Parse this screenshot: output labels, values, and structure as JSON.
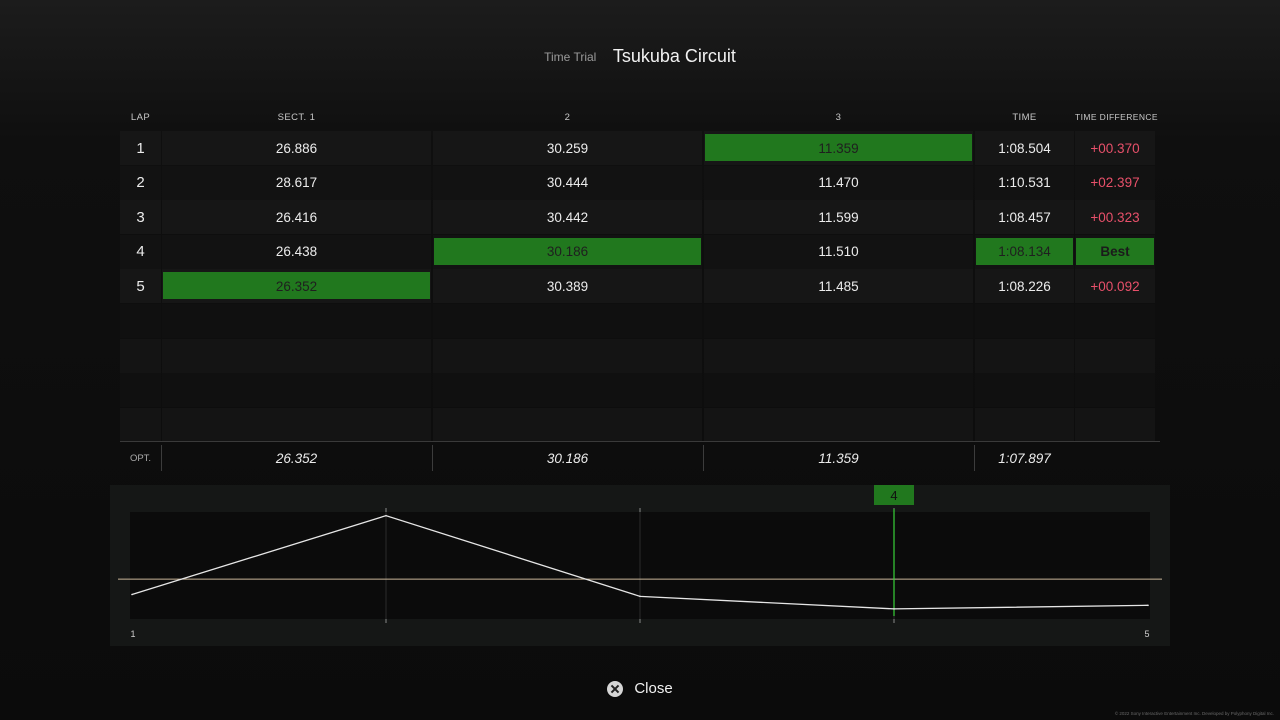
{
  "header": {
    "mode": "Time Trial",
    "track": "Tsukuba Circuit"
  },
  "columns": {
    "lap": "LAP",
    "sect1": "SECT. 1",
    "sect2": "2",
    "sect3": "3",
    "time": "TIME",
    "diff": "TIME DIFFERENCE"
  },
  "laps": [
    {
      "lap": "1",
      "s1": "26.886",
      "s2": "30.259",
      "s3": "11.359",
      "time": "1:08.504",
      "diff": "+00.370",
      "best_s1": false,
      "best_s2": false,
      "best_s3": true,
      "best_lap": false
    },
    {
      "lap": "2",
      "s1": "28.617",
      "s2": "30.444",
      "s3": "11.470",
      "time": "1:10.531",
      "diff": "+02.397",
      "best_s1": false,
      "best_s2": false,
      "best_s3": false,
      "best_lap": false
    },
    {
      "lap": "3",
      "s1": "26.416",
      "s2": "30.442",
      "s3": "11.599",
      "time": "1:08.457",
      "diff": "+00.323",
      "best_s1": false,
      "best_s2": false,
      "best_s3": false,
      "best_lap": false
    },
    {
      "lap": "4",
      "s1": "26.438",
      "s2": "30.186",
      "s3": "11.510",
      "time": "1:08.134",
      "diff": "Best",
      "best_s1": false,
      "best_s2": true,
      "best_s3": false,
      "best_lap": true
    },
    {
      "lap": "5",
      "s1": "26.352",
      "s2": "30.389",
      "s3": "11.485",
      "time": "1:08.226",
      "diff": "+00.092",
      "best_s1": true,
      "best_s2": false,
      "best_s3": false,
      "best_lap": false
    }
  ],
  "empty_rows": 4,
  "optimal": {
    "label": "OPT.",
    "s1": "26.352",
    "s2": "30.186",
    "s3": "11.359",
    "time": "1:07.897"
  },
  "graph": {
    "lap_times_seconds": [
      68.504,
      70.531,
      68.457,
      68.134,
      68.226
    ],
    "reference_seconds": 68.9,
    "y_range_seconds": [
      67.9,
      70.6
    ],
    "best_lap_marker": "4",
    "x_start_label": "1",
    "x_end_label": "5"
  },
  "footer": {
    "close_label": "Close",
    "copyright": "© 2022 Sony Interactive Entertainment Inc. Developed by Polyphony Digital Inc."
  },
  "colors": {
    "highlight": "#21781e",
    "diff_text": "#e8506a",
    "graph_line": "#e6e6e6",
    "reference_line": "#cbb79a",
    "marker_line": "#39d239"
  }
}
